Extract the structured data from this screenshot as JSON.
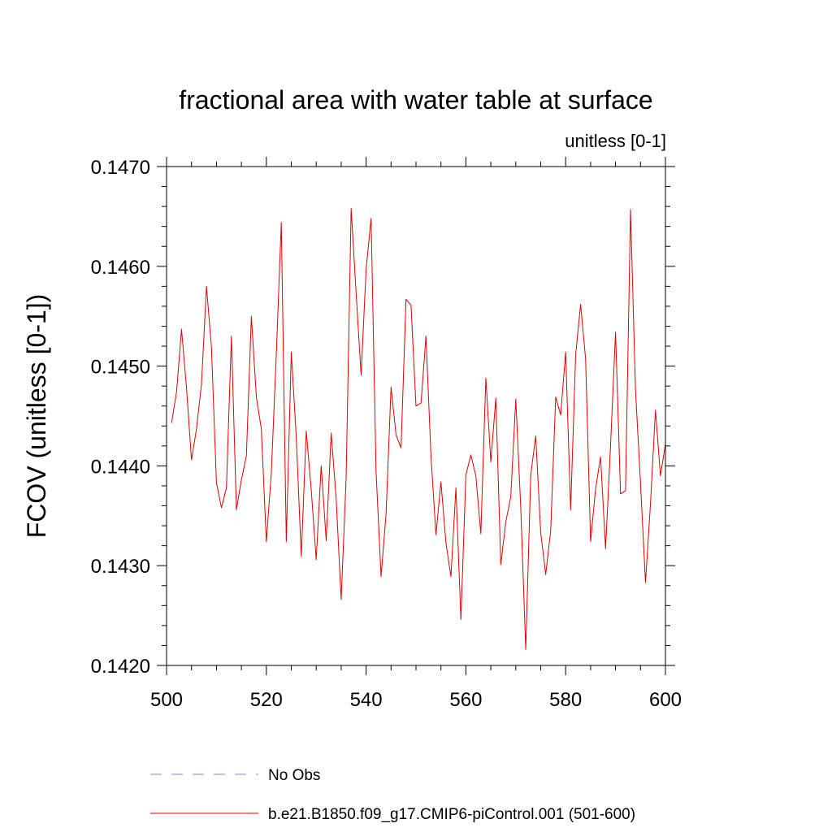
{
  "chart_data": {
    "type": "line",
    "title": "fractional area with water table at surface",
    "subtitle": "unitless [0-1]",
    "xlabel": "",
    "ylabel": "FCOV  (unitless [0-1])",
    "xlim": [
      500,
      600
    ],
    "ylim": [
      0.142,
      0.147
    ],
    "x_ticks": [
      500,
      520,
      540,
      560,
      580,
      600
    ],
    "x_tick_labels": [
      "500",
      "520",
      "540",
      "560",
      "580",
      "600"
    ],
    "y_ticks": [
      0.142,
      0.143,
      0.144,
      0.145,
      0.146,
      0.147
    ],
    "y_tick_labels": [
      "0.1420",
      "0.1430",
      "0.1440",
      "0.1450",
      "0.1460",
      "0.1470"
    ],
    "grid": false,
    "legend_position": "bottom-left",
    "series": [
      {
        "name": "No Obs",
        "color": "#8a7fc8",
        "dash": true,
        "values": []
      },
      {
        "name": "b.e21.B1850.f09_g17.CMIP6-piControl.001 (501-600)",
        "color": "#e00000",
        "dash": false,
        "x_start": 501,
        "x_step": 1,
        "values": [
          0.14443,
          0.14474,
          0.14537,
          0.14478,
          0.14406,
          0.14437,
          0.14482,
          0.1458,
          0.14519,
          0.14383,
          0.14358,
          0.14378,
          0.1453,
          0.14356,
          0.14386,
          0.1441,
          0.1455,
          0.14469,
          0.14437,
          0.14324,
          0.14393,
          0.14512,
          0.14644,
          0.14324,
          0.14514,
          0.14429,
          0.14309,
          0.14435,
          0.14376,
          0.14306,
          0.144,
          0.14325,
          0.14433,
          0.14367,
          0.14266,
          0.14388,
          0.14658,
          0.14573,
          0.14491,
          0.14597,
          0.14648,
          0.14394,
          0.14289,
          0.14352,
          0.14479,
          0.14431,
          0.14418,
          0.14567,
          0.14561,
          0.1446,
          0.14463,
          0.1453,
          0.1441,
          0.14331,
          0.14384,
          0.14323,
          0.14289,
          0.14378,
          0.14246,
          0.14391,
          0.14411,
          0.1439,
          0.14332,
          0.14488,
          0.14404,
          0.14468,
          0.14301,
          0.14344,
          0.14369,
          0.14467,
          0.14358,
          0.14216,
          0.14391,
          0.1443,
          0.14333,
          0.14291,
          0.14335,
          0.14469,
          0.14451,
          0.14514,
          0.14356,
          0.14511,
          0.14562,
          0.14507,
          0.14324,
          0.14377,
          0.14409,
          0.14317,
          0.14421,
          0.14534,
          0.14372,
          0.14375,
          0.14657,
          0.14476,
          0.14383,
          0.14283,
          0.14362,
          0.14456,
          0.1439,
          0.14422
        ]
      }
    ]
  }
}
